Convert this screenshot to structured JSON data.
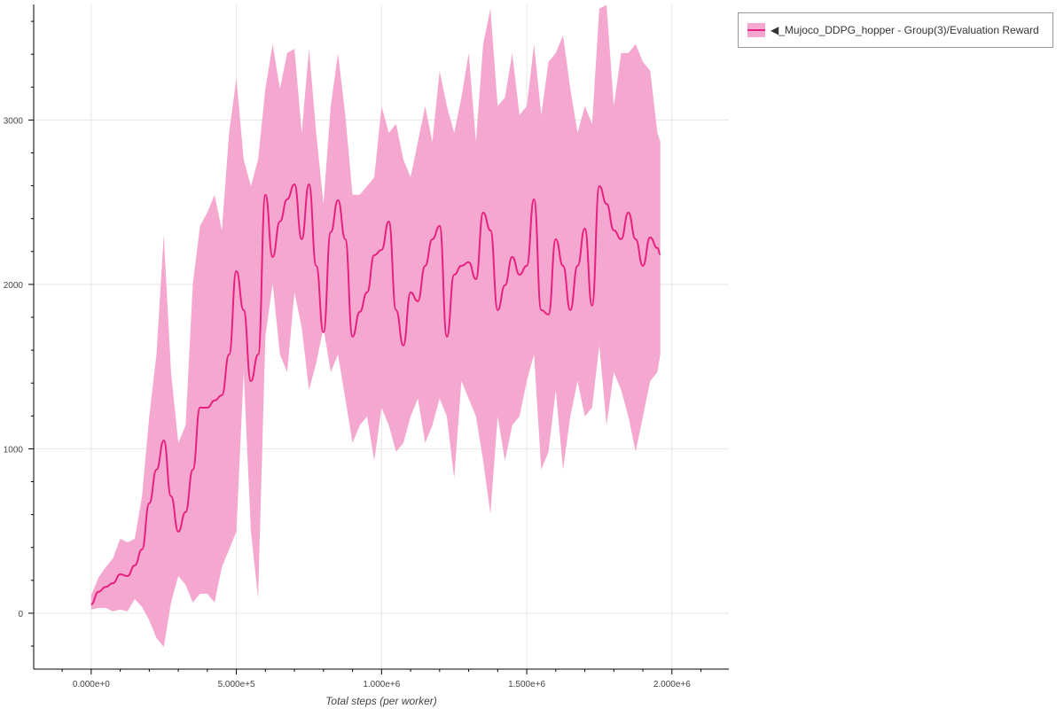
{
  "chart_data": {
    "type": "line",
    "title": "",
    "xlabel": "Total steps (per worker)",
    "ylabel": "",
    "xlim": [
      -198000,
      2196000
    ],
    "ylim": [
      -340,
      3703
    ],
    "grid": true,
    "legend_position": "outside-top-right",
    "x_ticks": [
      0,
      500000,
      1000000,
      1500000,
      2000000
    ],
    "x_tick_labels": [
      "0.000e+0",
      "5.000e+5",
      "1.000e+6",
      "1.500e+6",
      "2.000e+6"
    ],
    "y_ticks": [
      0,
      1000,
      2000,
      3000
    ],
    "y_tick_labels": [
      "0",
      "1000",
      "2000",
      "3000"
    ],
    "colors": {
      "line": "#e8207f",
      "band": "#f4a8cf",
      "grid": "#e6e6e6"
    },
    "series": [
      {
        "name": "◀_Mujoco_DDPG_hopper - Group(3)/Evaluation Reward",
        "x": [
          0,
          25000,
          50000,
          75000,
          100000,
          125000,
          150000,
          175000,
          200000,
          225000,
          250000,
          275000,
          300000,
          325000,
          350000,
          375000,
          400000,
          425000,
          450000,
          475000,
          500000,
          525000,
          550000,
          575000,
          600000,
          625000,
          650000,
          675000,
          700000,
          725000,
          750000,
          775000,
          800000,
          825000,
          850000,
          875000,
          900000,
          925000,
          950000,
          975000,
          1000000,
          1025000,
          1050000,
          1075000,
          1100000,
          1125000,
          1150000,
          1175000,
          1200000,
          1225000,
          1250000,
          1275000,
          1300000,
          1325000,
          1350000,
          1375000,
          1400000,
          1425000,
          1450000,
          1475000,
          1500000,
          1525000,
          1550000,
          1575000,
          1600000,
          1625000,
          1650000,
          1675000,
          1700000,
          1725000,
          1750000,
          1775000,
          1800000,
          1825000,
          1850000,
          1875000,
          1900000,
          1925000,
          1950000,
          1960000
        ],
        "mean": [
          54,
          130,
          160,
          183,
          237,
          226,
          291,
          388,
          668,
          873,
          1051,
          712,
          496,
          615,
          873,
          1251,
          1250,
          1294,
          1326,
          1574,
          2081,
          1844,
          1412,
          1574,
          2545,
          2167,
          2383,
          2518,
          2609,
          2275,
          2609,
          2113,
          1709,
          2318,
          2512,
          2275,
          1682,
          1833,
          1952,
          2178,
          2210,
          2383,
          1844,
          1628,
          1952,
          1898,
          2113,
          2275,
          2356,
          1682,
          2059,
          2113,
          2135,
          2032,
          2437,
          2329,
          1844,
          1995,
          2167,
          2059,
          2113,
          2518,
          1844,
          1817,
          2275,
          2113,
          1844,
          2113,
          2340,
          1871,
          2598,
          2490,
          2329,
          2275,
          2437,
          2275,
          2113,
          2286,
          2221,
          2183
        ],
        "upper": [
          108,
          216,
          280,
          334,
          453,
          431,
          453,
          712,
          1197,
          1574,
          2302,
          1466,
          1035,
          1143,
          2005,
          2356,
          2437,
          2545,
          2329,
          2922,
          3256,
          2760,
          2598,
          2760,
          3191,
          3461,
          3191,
          3407,
          3434,
          2922,
          3434,
          2922,
          2491,
          3084,
          3407,
          3030,
          2545,
          2545,
          2598,
          2652,
          3084,
          2922,
          2976,
          2760,
          2652,
          2868,
          3084,
          2868,
          3299,
          3084,
          2922,
          3137,
          3407,
          2868,
          3461,
          3677,
          3084,
          3137,
          3407,
          3030,
          3084,
          3461,
          3030,
          3353,
          3407,
          3515,
          3191,
          2922,
          3084,
          2976,
          3677,
          3700,
          3084,
          3407,
          3407,
          3461,
          3353,
          3299,
          2922,
          2868
        ],
        "lower": [
          22,
          32,
          32,
          11,
          22,
          11,
          86,
          38,
          -43,
          -151,
          -205,
          65,
          226,
          173,
          65,
          119,
          119,
          65,
          280,
          388,
          496,
          1466,
          496,
          92,
          1682,
          2005,
          1574,
          1466,
          1952,
          1736,
          1358,
          1520,
          1736,
          1466,
          1574,
          1305,
          1035,
          1143,
          1197,
          927,
          1251,
          1143,
          981,
          1035,
          1197,
          1305,
          1035,
          1143,
          1305,
          1197,
          819,
          1412,
          1305,
          1197,
          927,
          604,
          1197,
          927,
          1143,
          1197,
          1412,
          1574,
          873,
          981,
          1358,
          873,
          1197,
          1412,
          1197,
          1251,
          1628,
          1143,
          1466,
          1358,
          1197,
          981,
          1197,
          1412,
          1466,
          1574
        ]
      }
    ]
  }
}
